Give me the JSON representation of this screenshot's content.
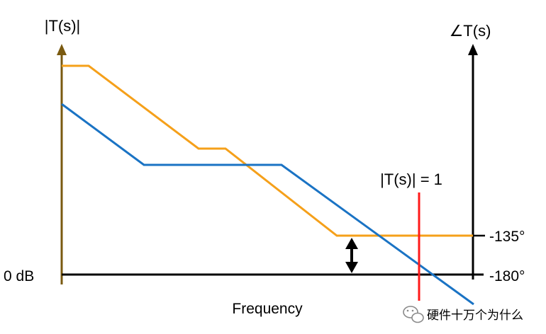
{
  "labels": {
    "magnitude_axis": "|T(s)|",
    "phase_axis": "∠T(s)",
    "zero_db": "0 dB",
    "x_axis": "Frequency",
    "crossover": "|T(s)| = 1",
    "phase_135": "-135°",
    "phase_180": "-180°",
    "watermark": "硬件十万个为什么"
  },
  "colors": {
    "magnitude_axis": "#7a5a10",
    "phase_axis": "#000000",
    "zero_db_line": "#000000",
    "magnitude_curve": "#1a73c4",
    "phase_curve": "#f5a01a",
    "crossover_marker": "#ff1a1a",
    "margin_arrow": "#000000",
    "watermark_icon": "#8a8a8a"
  },
  "icons": {
    "watermark": "wechat-icon"
  }
}
